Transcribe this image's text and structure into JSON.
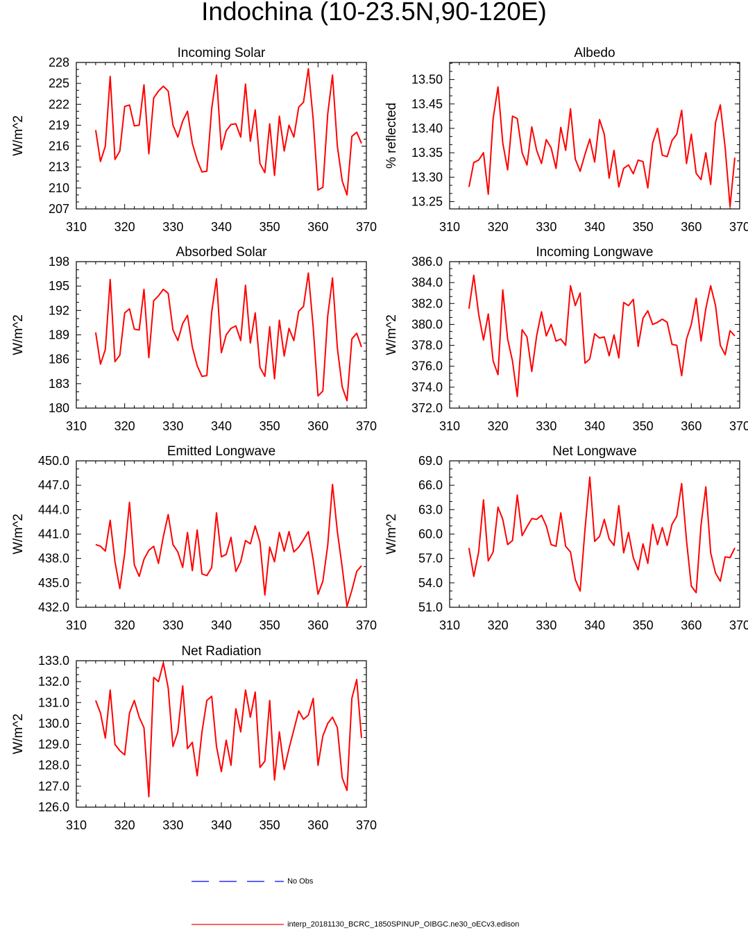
{
  "figure": {
    "title": "Indochina (10-23.5N,90-120E)",
    "model_color": "#ff0000",
    "obs_color": "#0000ff",
    "legend": {
      "obs_label": "No Obs",
      "model_label": "interp_20181130_BCRC_1850SPINUP_OIBGC.ne30_oECv3.edison"
    }
  },
  "chart_data": [
    {
      "id": "incoming-solar",
      "type": "line",
      "title": "Incoming Solar",
      "ylabel": "W/m^2",
      "xlim": [
        310,
        370
      ],
      "xticks": [
        310,
        320,
        330,
        340,
        350,
        360,
        370
      ],
      "ylim": [
        207,
        228
      ],
      "yticks": [
        207,
        210,
        213,
        216,
        219,
        222,
        225,
        228
      ],
      "ydecimals": 0,
      "x_start": 314,
      "values": [
        218.3,
        213.8,
        216.0,
        226.0,
        214.1,
        215.3,
        221.7,
        221.9,
        218.9,
        219.0,
        224.8,
        214.9,
        222.9,
        223.9,
        224.6,
        223.9,
        219.0,
        217.3,
        219.6,
        221.0,
        216.4,
        214.0,
        212.3,
        212.4,
        221.4,
        226.2,
        215.5,
        218.2,
        219.1,
        219.2,
        217.3,
        224.9,
        216.7,
        221.2,
        213.5,
        212.2,
        219.2,
        211.8,
        220.3,
        215.3,
        219.0,
        217.3,
        221.6,
        222.3,
        227.1,
        219.8,
        209.7,
        210.1,
        220.6,
        226.2,
        216.0,
        211.0,
        209.0,
        217.4,
        218.0,
        216.4
      ]
    },
    {
      "id": "albedo",
      "type": "line",
      "title": "Albedo",
      "ylabel": "% reflected",
      "xlim": [
        310,
        370
      ],
      "xticks": [
        310,
        320,
        330,
        340,
        350,
        360,
        370
      ],
      "ylim": [
        13.235,
        13.535
      ],
      "yticks": [
        13.25,
        13.3,
        13.35,
        13.4,
        13.45,
        13.5
      ],
      "ydecimals": 2,
      "x_start": 314,
      "values": [
        13.28,
        13.33,
        13.335,
        13.35,
        13.265,
        13.42,
        13.485,
        13.37,
        13.315,
        13.425,
        13.42,
        13.35,
        13.325,
        13.403,
        13.355,
        13.328,
        13.377,
        13.36,
        13.318,
        13.402,
        13.355,
        13.44,
        13.337,
        13.312,
        13.347,
        13.378,
        13.331,
        13.418,
        13.388,
        13.298,
        13.355,
        13.28,
        13.318,
        13.325,
        13.307,
        13.335,
        13.332,
        13.278,
        13.37,
        13.4,
        13.345,
        13.342,
        13.375,
        13.388,
        13.437,
        13.328,
        13.388,
        13.308,
        13.295,
        13.35,
        13.285,
        13.412,
        13.448,
        13.36,
        13.24,
        13.34
      ]
    },
    {
      "id": "absorbed-solar",
      "type": "line",
      "title": "Absorbed Solar",
      "ylabel": "W/m^2",
      "xlim": [
        310,
        370
      ],
      "xticks": [
        310,
        320,
        330,
        340,
        350,
        360,
        370
      ],
      "ylim": [
        180,
        198
      ],
      "yticks": [
        180,
        183,
        186,
        189,
        192,
        195,
        198
      ],
      "ydecimals": 0,
      "x_start": 314,
      "values": [
        189.3,
        185.4,
        187.2,
        195.8,
        185.7,
        186.5,
        191.7,
        192.2,
        189.7,
        189.6,
        194.6,
        186.2,
        193.2,
        193.8,
        194.6,
        194.1,
        189.6,
        188.3,
        190.4,
        191.4,
        187.5,
        185.2,
        183.9,
        184.0,
        191.8,
        195.9,
        186.8,
        189.0,
        189.8,
        190.1,
        188.3,
        195.1,
        188.0,
        191.7,
        185.0,
        183.9,
        190.0,
        183.6,
        190.8,
        186.4,
        189.8,
        188.3,
        191.9,
        192.5,
        196.6,
        189.9,
        181.5,
        182.1,
        191.3,
        196.0,
        187.4,
        182.6,
        180.9,
        188.5,
        189.2,
        187.5
      ]
    },
    {
      "id": "incoming-longwave",
      "type": "line",
      "title": "Incoming Longwave",
      "ylabel": "W/m^2",
      "xlim": [
        310,
        370
      ],
      "xticks": [
        310,
        320,
        330,
        340,
        350,
        360,
        370
      ],
      "ylim": [
        372,
        386
      ],
      "yticks": [
        372,
        374,
        376,
        378,
        380,
        382,
        384,
        386
      ],
      "ydecimals": 1,
      "x_start": 314,
      "values": [
        381.5,
        384.7,
        381.0,
        378.5,
        381.0,
        376.5,
        375.2,
        383.3,
        378.6,
        376.5,
        373.1,
        379.5,
        378.8,
        375.5,
        378.9,
        381.2,
        378.9,
        380.0,
        378.4,
        378.6,
        378.0,
        383.7,
        381.8,
        383.0,
        376.3,
        376.7,
        379.1,
        378.7,
        378.8,
        377.0,
        379.0,
        376.8,
        382.1,
        381.8,
        382.4,
        377.9,
        380.6,
        381.3,
        380.0,
        380.2,
        380.5,
        380.2,
        378.1,
        378.0,
        375.1,
        378.6,
        380.0,
        382.5,
        378.4,
        381.5,
        383.7,
        381.8,
        378.0,
        377.1,
        379.4,
        378.9
      ]
    },
    {
      "id": "emitted-longwave",
      "type": "line",
      "title": "Emitted Longwave",
      "ylabel": "W/m^2",
      "xlim": [
        310,
        370
      ],
      "xticks": [
        310,
        320,
        330,
        340,
        350,
        360,
        370
      ],
      "ylim": [
        432,
        450
      ],
      "yticks": [
        432,
        435,
        438,
        441,
        444,
        447,
        450
      ],
      "ydecimals": 1,
      "x_start": 314,
      "values": [
        439.7,
        439.5,
        438.9,
        442.7,
        437.6,
        434.3,
        438.6,
        444.9,
        437.2,
        435.8,
        437.9,
        439.0,
        439.5,
        437.4,
        440.7,
        443.4,
        439.7,
        438.8,
        436.9,
        441.2,
        436.5,
        441.5,
        436.1,
        435.9,
        436.9,
        443.6,
        438.2,
        438.5,
        440.6,
        436.4,
        437.6,
        440.2,
        439.8,
        442.0,
        440.0,
        433.5,
        439.4,
        437.6,
        441.2,
        438.9,
        441.3,
        438.8,
        439.4,
        440.3,
        441.3,
        437.8,
        433.6,
        435.2,
        439.6,
        447.1,
        441.3,
        436.9,
        432.1,
        434.1,
        436.4,
        437.1
      ]
    },
    {
      "id": "net-longwave",
      "type": "line",
      "title": "Net Longwave",
      "ylabel": "W/m^2",
      "xlim": [
        310,
        370
      ],
      "xticks": [
        310,
        320,
        330,
        340,
        350,
        360,
        370
      ],
      "ylim": [
        51,
        69
      ],
      "yticks": [
        51,
        54,
        57,
        60,
        63,
        66,
        69
      ],
      "ydecimals": 1,
      "x_start": 314,
      "values": [
        58.3,
        54.8,
        57.8,
        64.2,
        56.7,
        57.8,
        63.3,
        61.8,
        58.7,
        59.2,
        64.8,
        59.8,
        60.9,
        61.9,
        61.8,
        62.3,
        61.0,
        58.7,
        58.5,
        62.6,
        58.5,
        57.8,
        54.4,
        53.0,
        60.6,
        67.0,
        59.1,
        59.7,
        61.8,
        59.4,
        58.6,
        63.5,
        57.7,
        60.2,
        57.1,
        55.6,
        58.8,
        56.4,
        61.2,
        58.7,
        60.8,
        58.6,
        61.2,
        62.2,
        66.2,
        59.2,
        53.6,
        52.8,
        61.1,
        65.8,
        57.7,
        55.2,
        54.2,
        57.2,
        57.1,
        58.3
      ]
    },
    {
      "id": "net-radiation",
      "type": "line",
      "title": "Net Radiation",
      "ylabel": "W/m^2",
      "xlim": [
        310,
        370
      ],
      "xticks": [
        310,
        320,
        330,
        340,
        350,
        360,
        370
      ],
      "ylim": [
        126,
        133
      ],
      "yticks": [
        126,
        127,
        128,
        129,
        130,
        131,
        132,
        133
      ],
      "ydecimals": 1,
      "x_start": 314,
      "values": [
        131.1,
        130.5,
        129.3,
        131.6,
        129.0,
        128.7,
        128.5,
        130.5,
        131.1,
        130.3,
        129.8,
        126.5,
        132.2,
        132.0,
        132.9,
        131.7,
        128.9,
        129.6,
        131.8,
        128.8,
        129.1,
        127.5,
        129.6,
        131.1,
        131.3,
        128.9,
        127.7,
        129.2,
        128.0,
        130.7,
        129.6,
        131.6,
        130.3,
        131.5,
        127.9,
        128.2,
        131.1,
        127.3,
        129.6,
        127.8,
        128.8,
        129.7,
        130.6,
        130.2,
        130.4,
        131.2,
        128.0,
        129.4,
        130.0,
        130.3,
        129.8,
        127.4,
        126.8,
        131.2,
        132.1,
        129.3
      ]
    }
  ]
}
